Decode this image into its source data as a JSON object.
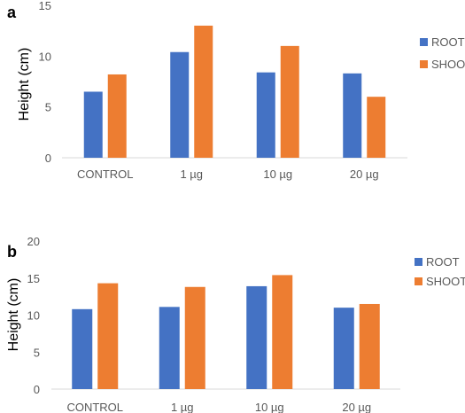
{
  "chart_data": [
    {
      "panel_label": "a",
      "type": "bar",
      "categories": [
        "CONTROL",
        "1 µg",
        "10 µg",
        "20 µg"
      ],
      "series": [
        {
          "name": "ROOT",
          "values": [
            6.5,
            10.4,
            8.4,
            8.3
          ],
          "color": "#4472C4"
        },
        {
          "name": "SHOOT",
          "values": [
            8.2,
            13.0,
            11.0,
            6.0
          ],
          "color": "#ED7D31"
        }
      ],
      "title": "",
      "xlabel": "",
      "ylabel": "Height (cm)",
      "ylim": [
        0,
        15
      ],
      "yticks": [
        "0",
        "5",
        "10",
        "15"
      ],
      "grid": false,
      "legend_position": "right"
    },
    {
      "panel_label": "b",
      "type": "bar",
      "categories": [
        "CONTROL",
        "1 µg",
        "10 µg",
        "20 µg"
      ],
      "series": [
        {
          "name": "ROOT",
          "values": [
            10.8,
            11.1,
            13.9,
            11.0
          ],
          "color": "#4472C4"
        },
        {
          "name": "SHOOT",
          "values": [
            14.3,
            13.8,
            15.4,
            11.5
          ],
          "color": "#ED7D31"
        }
      ],
      "title": "",
      "xlabel": "",
      "ylabel": "Height (cm)",
      "ylim": [
        0,
        20
      ],
      "yticks": [
        "0",
        "5",
        "10",
        "15",
        "20"
      ],
      "grid": false,
      "legend_position": "right"
    }
  ]
}
